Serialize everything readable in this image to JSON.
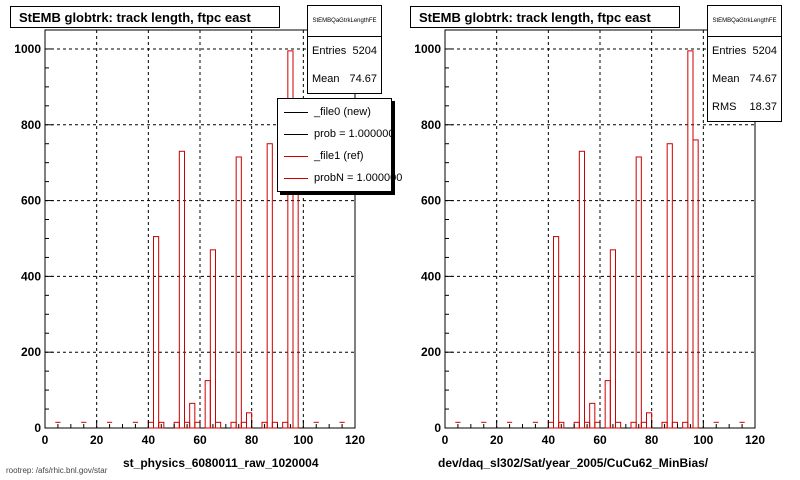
{
  "colors": {
    "new": "#000000",
    "ref": "#cc0000",
    "grid": "#000000"
  },
  "pads": [
    {
      "title": "StEMB globtrk: track length, ftpc east",
      "stats": {
        "name": "StEMBQaGtrkLengthFE",
        "rows": [
          {
            "key": "Entries",
            "value": "5204"
          },
          {
            "key": "Mean",
            "value": "74.67"
          }
        ]
      },
      "legend": [
        {
          "label": "_file0 (new)",
          "color": "#000000"
        },
        {
          "label": "prob = 1.000000",
          "color": "#000000"
        },
        {
          "label": "_file1 (ref)",
          "color": "#cc0000"
        },
        {
          "label": "probN = 1.000000",
          "color": "#cc0000"
        }
      ],
      "xtitle": "st_physics_6080011_raw_1020004"
    },
    {
      "title": "StEMB globtrk: track length, ftpc east",
      "stats": {
        "name": "StEMBQaGtrkLengthFE",
        "rows": [
          {
            "key": "Entries",
            "value": "5204"
          },
          {
            "key": "Mean",
            "value": "74.67"
          },
          {
            "key": "RMS",
            "value": "18.37"
          }
        ]
      },
      "legend": [],
      "xtitle": "dev/daq_sl302/Sat/year_2005/CuCu62_MinBias/"
    }
  ],
  "chart_data": {
    "type": "bar",
    "xlim": [
      0,
      120
    ],
    "ylim": [
      0,
      1050
    ],
    "xticks": [
      "0",
      "20",
      "40",
      "60",
      "80",
      "100",
      "120"
    ],
    "yticks": [
      "0",
      "200",
      "400",
      "600",
      "800",
      "1000"
    ],
    "grid": true,
    "bin_width": 2,
    "bins_x": [
      40,
      42,
      44,
      50,
      52,
      54,
      56,
      58,
      62,
      64,
      66,
      72,
      74,
      76,
      78,
      84,
      86,
      88,
      92,
      94,
      96
    ],
    "series": [
      {
        "name": "_file1 (ref)",
        "values": [
          15,
          505,
          15,
          15,
          730,
          15,
          65,
          15,
          125,
          470,
          15,
          15,
          715,
          15,
          40,
          15,
          750,
          15,
          15,
          995,
          760
        ]
      }
    ],
    "baseline": 15
  },
  "footer": "rootrep: /afs/rhic.bnl.gov/star"
}
